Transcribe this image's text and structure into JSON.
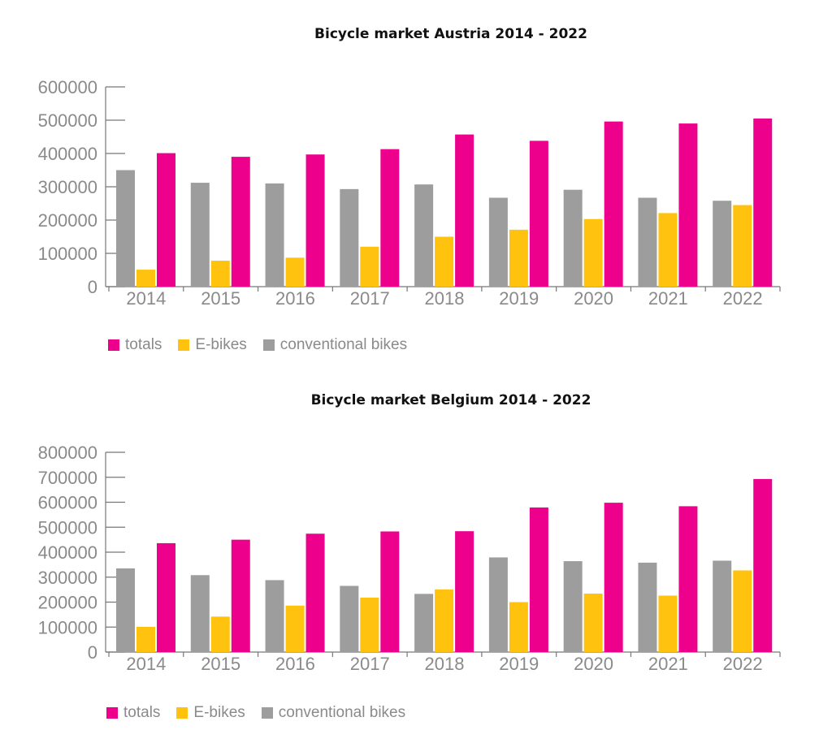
{
  "colors": {
    "totals": "#EC008C",
    "ebikes": "#FFC20E",
    "conventional": "#9D9D9D",
    "axis": "#777777",
    "tick_text": "#8a8a8a"
  },
  "chart_data": [
    {
      "type": "bar",
      "title": "Bicycle market Austria 2014 - 2022",
      "xlabel": "",
      "ylabel": "",
      "categories": [
        "2014",
        "2015",
        "2016",
        "2017",
        "2018",
        "2019",
        "2020",
        "2021",
        "2022"
      ],
      "ylim": [
        0,
        600000
      ],
      "yticks": [
        "0",
        "100000",
        "200000",
        "300000",
        "400000",
        "500000",
        "600000"
      ],
      "grid": false,
      "legend_position": "bottom-left",
      "legend": [
        "totals",
        "E-bikes",
        "conventional bikes"
      ],
      "series": [
        {
          "name": "conventional bikes",
          "key": "conventional",
          "values": [
            350000,
            312000,
            310000,
            293000,
            307000,
            267000,
            291000,
            267000,
            258000
          ]
        },
        {
          "name": "E-bikes",
          "key": "ebikes",
          "values": [
            51000,
            78000,
            87000,
            120000,
            150000,
            171000,
            203000,
            221000,
            245000
          ]
        },
        {
          "name": "totals",
          "key": "totals",
          "values": [
            401000,
            390000,
            397000,
            413000,
            457000,
            438000,
            496000,
            490000,
            505000
          ]
        }
      ]
    },
    {
      "type": "bar",
      "title": "Bicycle market Belgium 2014 - 2022",
      "xlabel": "",
      "ylabel": "",
      "categories": [
        "2014",
        "2015",
        "2016",
        "2017",
        "2018",
        "2019",
        "2020",
        "2021",
        "2022"
      ],
      "ylim": [
        0,
        800000
      ],
      "yticks": [
        "0",
        "100000",
        "200000",
        "300000",
        "400000",
        "500000",
        "600000",
        "700000",
        "800000"
      ],
      "grid": false,
      "legend_position": "bottom-left",
      "legend": [
        "totals",
        "E-bikes",
        "conventional bikes"
      ],
      "series": [
        {
          "name": "conventional bikes",
          "key": "conventional",
          "values": [
            335000,
            308000,
            288000,
            265000,
            233000,
            379000,
            364000,
            358000,
            366000
          ]
        },
        {
          "name": "E-bikes",
          "key": "ebikes",
          "values": [
            101000,
            142000,
            186000,
            218000,
            251000,
            200000,
            234000,
            226000,
            327000
          ]
        },
        {
          "name": "totals",
          "key": "totals",
          "values": [
            436000,
            450000,
            474000,
            483000,
            484000,
            579000,
            598000,
            584000,
            693000
          ]
        }
      ]
    }
  ]
}
